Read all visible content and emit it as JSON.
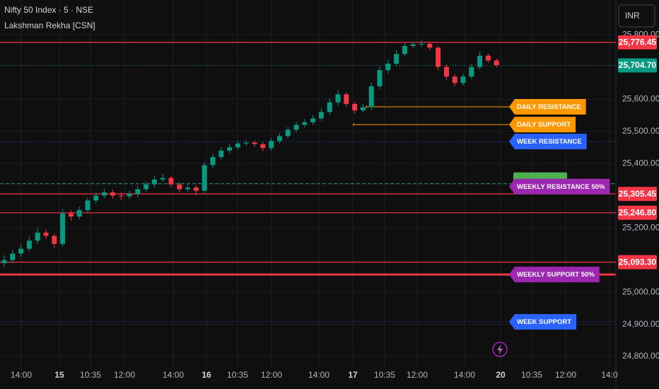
{
  "toolbar": {
    "currency": "INR"
  },
  "chart_data": {
    "type": "candlestick",
    "title": "Nifty 50 Index · 5 · NSE",
    "subtitle": "Lakshman Rekha [CSN]",
    "up_color": "#089981",
    "down_color": "#f23645",
    "grid": true,
    "ylim": [
      24765,
      25908
    ],
    "yticks": [
      {
        "value": 24800,
        "label": "24,800.00"
      },
      {
        "value": 24900,
        "label": "24,900.00"
      },
      {
        "value": 25000,
        "label": "25,000.00"
      },
      {
        "value": 25200,
        "label": "25,200.00"
      },
      {
        "value": 25400,
        "label": "25,400.00"
      },
      {
        "value": 25500,
        "label": "25,500.00"
      },
      {
        "value": 25600,
        "label": "25,600.00"
      },
      {
        "value": 25800,
        "label": "25,800.00"
      }
    ],
    "x_labels": [
      "14:00",
      "15",
      "10:35",
      "12:00",
      "14:00",
      "16",
      "10:35",
      "12:00",
      "14:00",
      "17",
      "10:35",
      "12:00",
      "14:00",
      "20",
      "10:35",
      "12:00",
      "14:0"
    ],
    "open": [
      25090,
      25100,
      25120,
      25135,
      25160,
      25185,
      25175,
      25150,
      25245,
      25235,
      25255,
      25285,
      25300,
      25310,
      25300,
      25298,
      25305,
      25320,
      25335,
      25350,
      25355,
      25335,
      25320,
      25325,
      25315,
      25395,
      25420,
      25440,
      25450,
      25462,
      25465,
      25460,
      25448,
      25470,
      25485,
      25505,
      25520,
      25528,
      25540,
      25560,
      25590,
      25615,
      25585,
      25565,
      25575,
      25640,
      25690,
      25710,
      25740,
      25765,
      25770,
      25772,
      25760,
      25700,
      25670,
      25650,
      25670,
      25700,
      25735,
      25720
    ],
    "high": [
      25115,
      25132,
      25148,
      25172,
      25198,
      25195,
      25182,
      25258,
      25255,
      25266,
      25294,
      25310,
      25322,
      25318,
      25310,
      25315,
      25330,
      25344,
      25362,
      25368,
      25362,
      25342,
      25334,
      25332,
      25404,
      25430,
      25450,
      25460,
      25470,
      25474,
      25472,
      25466,
      25478,
      25494,
      25514,
      25530,
      25538,
      25550,
      25572,
      25602,
      25628,
      25622,
      25592,
      25585,
      25652,
      25702,
      25722,
      25752,
      25774,
      25778,
      25782,
      25778,
      25766,
      25708,
      25678,
      25680,
      25710,
      25748,
      25742,
      25726
    ],
    "low": [
      25078,
      25090,
      25110,
      25126,
      25150,
      25165,
      25138,
      25142,
      25222,
      25226,
      25246,
      25276,
      25292,
      25290,
      25286,
      25290,
      25296,
      25312,
      25326,
      25342,
      25326,
      25310,
      25312,
      25300,
      25308,
      25386,
      25412,
      25432,
      25444,
      25455,
      25452,
      25438,
      25440,
      25462,
      25478,
      25496,
      25512,
      25520,
      25532,
      25552,
      25580,
      25576,
      25555,
      25558,
      25566,
      25630,
      25680,
      25702,
      25732,
      25758,
      25762,
      25752,
      25690,
      25660,
      25640,
      25642,
      25662,
      25692,
      25712,
      25698
    ],
    "close": [
      25100,
      25120,
      25135,
      25160,
      25185,
      25175,
      25150,
      25245,
      25235,
      25255,
      25285,
      25300,
      25310,
      25300,
      25298,
      25305,
      25320,
      25335,
      25350,
      25355,
      25335,
      25320,
      25325,
      25315,
      25395,
      25420,
      25440,
      25450,
      25462,
      25465,
      25460,
      25448,
      25470,
      25485,
      25505,
      25520,
      25528,
      25540,
      25560,
      25590,
      25615,
      25585,
      25565,
      25575,
      25640,
      25690,
      25710,
      25740,
      25765,
      25770,
      25772,
      25760,
      25700,
      25670,
      25650,
      25670,
      25700,
      25735,
      25720,
      25705
    ],
    "levels": [
      {
        "value": 25776.45,
        "label": "25,776.45",
        "color": "#f23645",
        "style": "solid"
      },
      {
        "value": 25704.7,
        "label": "25,704.70",
        "color": "#089981",
        "style": "dotted"
      },
      {
        "value": 25305.45,
        "label": "25,305.45",
        "color": "#f23645",
        "style": "solid"
      },
      {
        "value": 25246.8,
        "label": "25,246.80",
        "color": "#f23645",
        "style": "solid"
      },
      {
        "value": 25093.3,
        "label": "25,093.30",
        "color": "#f23645",
        "style": "solid"
      }
    ],
    "tags": [
      {
        "label": "DAILY RESISTANCE",
        "value": 25576,
        "color": "#ff9800",
        "style": "solid"
      },
      {
        "label": "DAILY SUPPORT",
        "value": 25521,
        "color": "#ff9800",
        "style": "solid"
      },
      {
        "label": "WEEK RESISTANCE",
        "value": 25468,
        "color": "#2962ff",
        "style": "dotted"
      },
      {
        "label": "WEEKLY RESISTANCE 50%",
        "value": 25337,
        "color": "#9c27b0",
        "style": "dashed"
      },
      {
        "label": "WEEKLY SUPPORT 50%",
        "value": 25055,
        "color": "#9c27b0",
        "style": "thick"
      },
      {
        "label": "WEEK SUPPORT",
        "value": 24908,
        "color": "#2962ff",
        "style": "dotted"
      }
    ]
  }
}
